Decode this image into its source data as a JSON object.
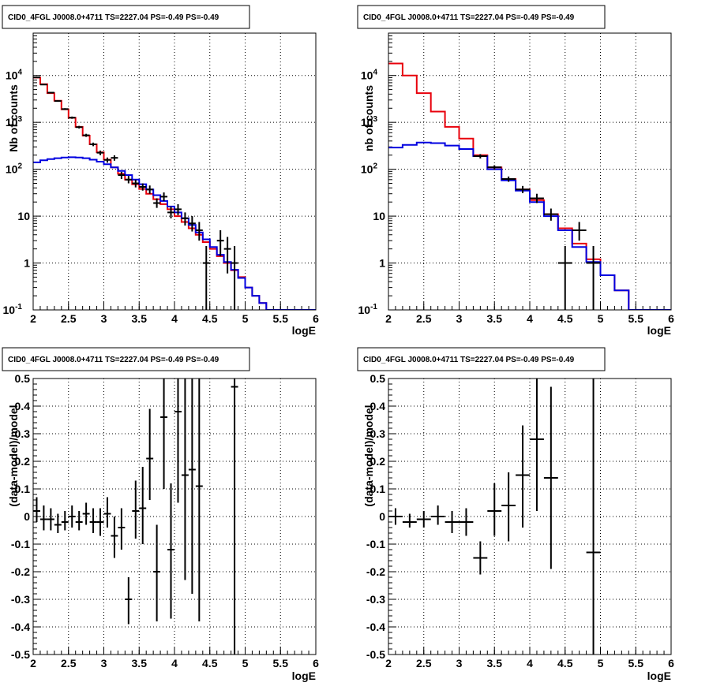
{
  "chart_data": [
    {
      "type": "line",
      "title": "CID0_4FGL J0008.0+4711 TS=2227.04 PS=-0.49 PS=-0.49",
      "xlabel": "logE",
      "ylabel": "Nb of counts",
      "xlim": [
        2,
        6
      ],
      "ylim": [
        0.1,
        80000
      ],
      "yscale": "log",
      "grid": true,
      "x_ticks": [
        "2",
        "2.5",
        "3",
        "3.5",
        "4",
        "4.5",
        "5",
        "5.5",
        "6"
      ],
      "y_ticks": [
        "10^-1",
        "1",
        "10",
        "10^2",
        "10^3",
        "10^4"
      ],
      "bin_edges": [
        2.0,
        2.1,
        2.2,
        2.3,
        2.4,
        2.5,
        2.6,
        2.7,
        2.8,
        2.9,
        3.0,
        3.1,
        3.2,
        3.3,
        3.4,
        3.5,
        3.6,
        3.7,
        3.8,
        3.9,
        4.0,
        4.1,
        4.2,
        4.3,
        4.4,
        4.5,
        4.6,
        4.7,
        4.8,
        4.9,
        5.0,
        5.1,
        5.2,
        5.3,
        5.4,
        5.5,
        5.6,
        5.7,
        5.8,
        5.9,
        6.0
      ],
      "series": [
        {
          "color": "#e8000b",
          "style": "histogram",
          "values": [
            9000,
            6500,
            4200,
            2900,
            1900,
            1250,
            800,
            520,
            340,
            230,
            160,
            110,
            80,
            60,
            48,
            38,
            30,
            23,
            18,
            14,
            10,
            7.5,
            5.5,
            4,
            2.8,
            2,
            1.4,
            1,
            0.7,
            0.5,
            0.3,
            0.2,
            0.14,
            0.1,
            0.1,
            0.1,
            0.1,
            0.1,
            0.1,
            0.1
          ]
        },
        {
          "color": "#0000e0",
          "style": "histogram",
          "values": [
            140,
            155,
            165,
            172,
            178,
            180,
            178,
            172,
            160,
            145,
            128,
            110,
            92,
            75,
            60,
            48,
            37,
            28,
            21,
            16,
            12,
            9,
            6.5,
            4.5,
            3.2,
            2.2,
            1.5,
            1.05,
            0.72,
            0.48,
            0.3,
            0.2,
            0.14,
            0.1,
            0.1,
            0.1,
            0.1,
            0.1,
            0.1,
            0.1
          ]
        },
        {
          "color": "#000000",
          "style": "points",
          "points": [
            {
              "x": 2.05,
              "y": 9100,
              "lo": 8900,
              "hi": 9300
            },
            {
              "x": 2.15,
              "y": 6400,
              "lo": 6250,
              "hi": 6550
            },
            {
              "x": 2.25,
              "y": 4300,
              "lo": 4170,
              "hi": 4430
            },
            {
              "x": 2.35,
              "y": 2850,
              "lo": 2750,
              "hi": 2950
            },
            {
              "x": 2.45,
              "y": 1920,
              "lo": 1840,
              "hi": 2000
            },
            {
              "x": 2.55,
              "y": 1260,
              "lo": 1190,
              "hi": 1330
            },
            {
              "x": 2.65,
              "y": 790,
              "lo": 740,
              "hi": 840
            },
            {
              "x": 2.75,
              "y": 530,
              "lo": 490,
              "hi": 570
            },
            {
              "x": 2.85,
              "y": 340,
              "lo": 310,
              "hi": 370
            },
            {
              "x": 2.95,
              "y": 225,
              "lo": 200,
              "hi": 250
            },
            {
              "x": 3.05,
              "y": 158,
              "lo": 138,
              "hi": 178
            },
            {
              "x": 3.15,
              "y": 175,
              "lo": 152,
              "hi": 198
            },
            {
              "x": 3.25,
              "y": 75,
              "lo": 62,
              "hi": 88
            },
            {
              "x": 3.35,
              "y": 60,
              "lo": 50,
              "hi": 72
            },
            {
              "x": 3.45,
              "y": 50,
              "lo": 41,
              "hi": 60
            },
            {
              "x": 3.55,
              "y": 42,
              "lo": 35,
              "hi": 50
            },
            {
              "x": 3.65,
              "y": 37,
              "lo": 30,
              "hi": 45
            },
            {
              "x": 3.75,
              "y": 19,
              "lo": 15,
              "hi": 24
            },
            {
              "x": 3.85,
              "y": 26,
              "lo": 21,
              "hi": 32
            },
            {
              "x": 3.95,
              "y": 12,
              "lo": 9,
              "hi": 16
            },
            {
              "x": 4.05,
              "y": 14,
              "lo": 10.5,
              "hi": 18
            },
            {
              "x": 4.15,
              "y": 9,
              "lo": 6.3,
              "hi": 12
            },
            {
              "x": 4.25,
              "y": 7,
              "lo": 4.7,
              "hi": 10
            },
            {
              "x": 4.35,
              "y": 5,
              "lo": 3,
              "hi": 7.5
            },
            {
              "x": 4.45,
              "y": 1,
              "lo": 0.1,
              "hi": 2.3
            },
            {
              "x": 4.65,
              "y": 3,
              "lo": 1.4,
              "hi": 5
            },
            {
              "x": 4.75,
              "y": 2,
              "lo": 0.6,
              "hi": 3.6
            },
            {
              "x": 4.85,
              "y": 1,
              "lo": 0.1,
              "hi": 2.3
            }
          ]
        }
      ]
    },
    {
      "type": "line",
      "title": "CID0_4FGL J0008.0+4711 TS=2227.04 PS=-0.49 PS=-0.49",
      "xlabel": "logE",
      "ylabel": "nb of counts",
      "xlim": [
        2,
        6
      ],
      "ylim": [
        0.1,
        80000
      ],
      "yscale": "log",
      "grid": true,
      "x_ticks": [
        "2",
        "2.5",
        "3",
        "3.5",
        "4",
        "4.5",
        "5",
        "5.5",
        "6"
      ],
      "y_ticks": [
        "10^-1",
        "1",
        "10",
        "10^2",
        "10^3",
        "10^4"
      ],
      "bin_edges": [
        2.0,
        2.2,
        2.4,
        2.6,
        2.8,
        3.0,
        3.2,
        3.4,
        3.6,
        3.8,
        4.0,
        4.2,
        4.4,
        4.6,
        4.8,
        5.0,
        5.2,
        5.4,
        5.6,
        5.8,
        6.0
      ],
      "series": [
        {
          "color": "#e8000b",
          "style": "histogram",
          "values": [
            18000,
            10000,
            4200,
            1700,
            800,
            450,
            200,
            110,
            62,
            37,
            22,
            11,
            5.5,
            2.6,
            1.2,
            0.55,
            0.26,
            0.1,
            0.1,
            0.1
          ]
        },
        {
          "color": "#0000e0",
          "style": "histogram",
          "values": [
            290,
            330,
            370,
            360,
            320,
            270,
            190,
            100,
            58,
            35,
            20,
            10,
            5,
            2.2,
            1.05,
            0.55,
            0.26,
            0.1,
            0.1,
            0.1
          ]
        },
        {
          "color": "#000000",
          "style": "points",
          "points": [
            {
              "x": 3.3,
              "y": 190,
              "lo": 170,
              "hi": 210
            },
            {
              "x": 3.5,
              "y": 110,
              "lo": 98,
              "hi": 122
            },
            {
              "x": 3.7,
              "y": 62,
              "lo": 54,
              "hi": 70
            },
            {
              "x": 3.9,
              "y": 37,
              "lo": 31,
              "hi": 44
            },
            {
              "x": 4.1,
              "y": 24,
              "lo": 19,
              "hi": 30
            },
            {
              "x": 4.3,
              "y": 11,
              "lo": 8,
              "hi": 14.5
            },
            {
              "x": 4.5,
              "y": 1,
              "lo": 0.1,
              "hi": 2.3
            },
            {
              "x": 4.7,
              "y": 5,
              "lo": 3,
              "hi": 7.5
            },
            {
              "x": 4.9,
              "y": 1,
              "lo": 0.1,
              "hi": 2.3
            }
          ]
        }
      ]
    },
    {
      "type": "scatter",
      "title": "CID0_4FGL J0008.0+4711 TS=2227.04 PS=-0.49 PS=-0.49",
      "xlabel": "logE",
      "ylabel": "(data-model)/model",
      "xlim": [
        2,
        6
      ],
      "ylim": [
        -0.5,
        0.5
      ],
      "grid": true,
      "x_ticks": [
        "2",
        "2.5",
        "3",
        "3.5",
        "4",
        "4.5",
        "5",
        "5.5",
        "6"
      ],
      "y_ticks": [
        "-0.5",
        "-0.4",
        "-0.3",
        "-0.2",
        "-0.1",
        "0",
        "0.1",
        "0.2",
        "0.3",
        "0.4",
        "0.5"
      ],
      "series": [
        {
          "color": "#000000",
          "xerr": 0.05,
          "points": [
            {
              "x": 2.05,
              "y": 0.02,
              "lo": -0.02,
              "hi": 0.07
            },
            {
              "x": 2.15,
              "y": -0.01,
              "lo": -0.05,
              "hi": 0.04
            },
            {
              "x": 2.25,
              "y": -0.01,
              "lo": -0.05,
              "hi": 0.03
            },
            {
              "x": 2.35,
              "y": -0.03,
              "lo": -0.06,
              "hi": 0.01
            },
            {
              "x": 2.45,
              "y": -0.02,
              "lo": -0.05,
              "hi": 0.02
            },
            {
              "x": 2.55,
              "y": 0.0,
              "lo": -0.04,
              "hi": 0.04
            },
            {
              "x": 2.65,
              "y": -0.02,
              "lo": -0.05,
              "hi": 0.02
            },
            {
              "x": 2.75,
              "y": 0.01,
              "lo": -0.03,
              "hi": 0.05
            },
            {
              "x": 2.85,
              "y": -0.02,
              "lo": -0.06,
              "hi": 0.03
            },
            {
              "x": 2.95,
              "y": -0.02,
              "lo": -0.07,
              "hi": 0.03
            },
            {
              "x": 3.05,
              "y": 0.01,
              "lo": -0.04,
              "hi": 0.07
            },
            {
              "x": 3.15,
              "y": -0.07,
              "lo": -0.15,
              "hi": 0.0
            },
            {
              "x": 3.25,
              "y": -0.04,
              "lo": -0.12,
              "hi": 0.03
            },
            {
              "x": 3.35,
              "y": -0.3,
              "lo": -0.39,
              "hi": -0.22
            },
            {
              "x": 3.45,
              "y": 0.02,
              "lo": -0.08,
              "hi": 0.13
            },
            {
              "x": 3.55,
              "y": 0.03,
              "lo": -0.1,
              "hi": 0.18
            },
            {
              "x": 3.65,
              "y": 0.21,
              "lo": 0.06,
              "hi": 0.39
            },
            {
              "x": 3.75,
              "y": -0.2,
              "lo": -0.38,
              "hi": -0.03
            },
            {
              "x": 3.85,
              "y": 0.36,
              "lo": 0.1,
              "hi": 0.62
            },
            {
              "x": 3.95,
              "y": -0.12,
              "lo": -0.37,
              "hi": 0.12
            },
            {
              "x": 4.05,
              "y": 0.38,
              "lo": 0.05,
              "hi": 0.7
            },
            {
              "x": 4.15,
              "y": 0.15,
              "lo": -0.23,
              "hi": 0.55
            },
            {
              "x": 4.25,
              "y": 0.17,
              "lo": -0.28,
              "hi": 0.62
            },
            {
              "x": 4.35,
              "y": 0.11,
              "lo": -0.38,
              "hi": 0.6
            },
            {
              "x": 4.85,
              "y": 0.47,
              "lo": -0.6,
              "hi": 1.5
            }
          ]
        }
      ]
    },
    {
      "type": "scatter",
      "title": "CID0_4FGL J0008.0+4711 TS=2227.04 PS=-0.49 PS=-0.49",
      "xlabel": "logE",
      "ylabel": "(data-model)/model",
      "xlim": [
        2,
        6
      ],
      "ylim": [
        -0.5,
        0.5
      ],
      "grid": true,
      "x_ticks": [
        "2",
        "2.5",
        "3",
        "3.5",
        "4",
        "4.5",
        "5",
        "5.5",
        "6"
      ],
      "y_ticks": [
        "-0.5",
        "-0.4",
        "-0.3",
        "-0.2",
        "-0.1",
        "0",
        "0.1",
        "0.2",
        "0.3",
        "0.4",
        "0.5"
      ],
      "series": [
        {
          "color": "#000000",
          "xerr": 0.1,
          "points": [
            {
              "x": 2.1,
              "y": 0.0,
              "lo": -0.03,
              "hi": 0.03
            },
            {
              "x": 2.3,
              "y": -0.02,
              "lo": -0.04,
              "hi": 0.01
            },
            {
              "x": 2.5,
              "y": -0.01,
              "lo": -0.04,
              "hi": 0.02
            },
            {
              "x": 2.7,
              "y": 0.0,
              "lo": -0.03,
              "hi": 0.04
            },
            {
              "x": 2.9,
              "y": -0.02,
              "lo": -0.06,
              "hi": 0.02
            },
            {
              "x": 3.1,
              "y": -0.02,
              "lo": -0.07,
              "hi": 0.03
            },
            {
              "x": 3.3,
              "y": -0.15,
              "lo": -0.21,
              "hi": -0.09
            },
            {
              "x": 3.5,
              "y": 0.02,
              "lo": -0.07,
              "hi": 0.12
            },
            {
              "x": 3.7,
              "y": 0.04,
              "lo": -0.09,
              "hi": 0.16
            },
            {
              "x": 3.9,
              "y": 0.15,
              "lo": -0.04,
              "hi": 0.33
            },
            {
              "x": 4.1,
              "y": 0.28,
              "lo": 0.02,
              "hi": 0.55
            },
            {
              "x": 4.3,
              "y": 0.14,
              "lo": -0.19,
              "hi": 0.47
            },
            {
              "x": 4.9,
              "y": -0.13,
              "lo": -0.8,
              "hi": 0.55
            }
          ]
        }
      ]
    }
  ]
}
